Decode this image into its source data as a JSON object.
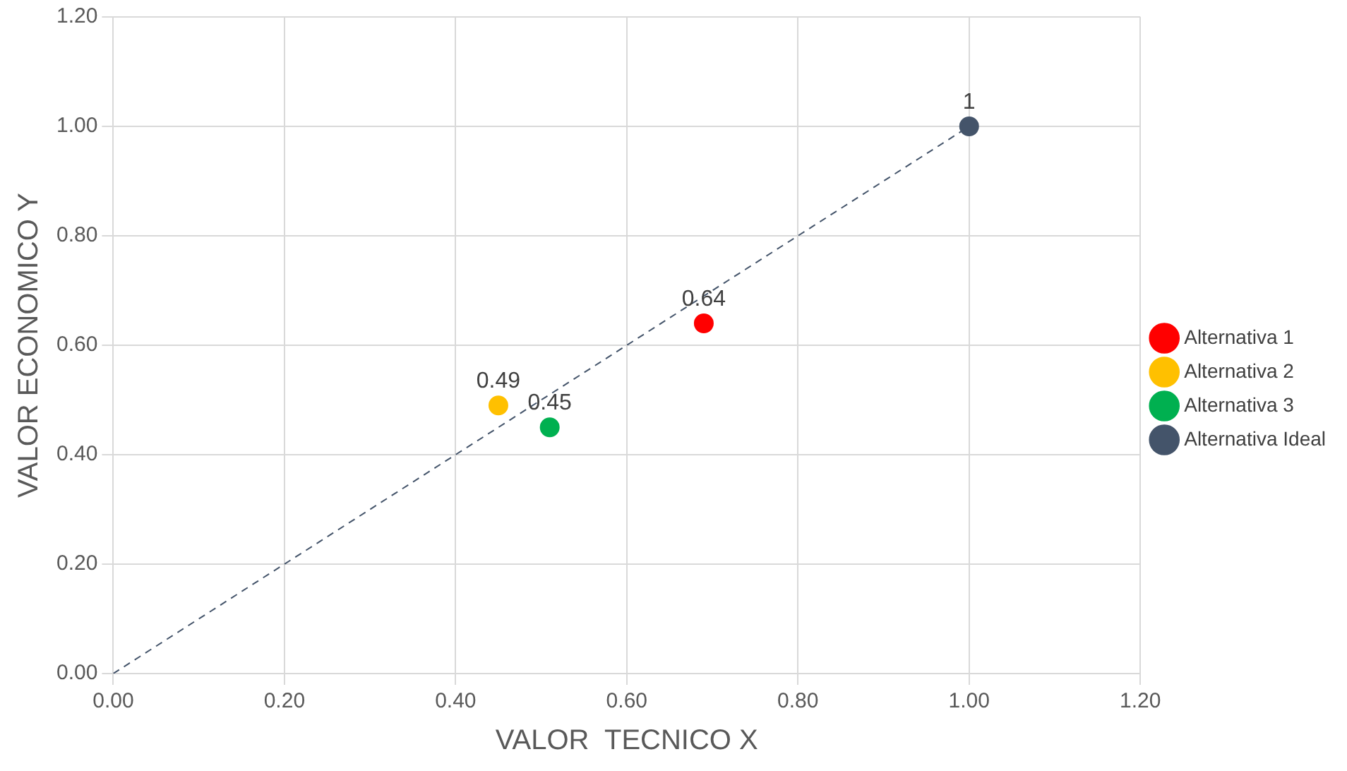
{
  "chart_data": {
    "type": "scatter",
    "xlabel": "VALOR  TECNICO X",
    "ylabel": "VALOR ECONOMICO Y",
    "xlim": [
      0,
      1.2
    ],
    "ylim": [
      0,
      1.2
    ],
    "xticks": [
      {
        "value": 0,
        "label": "0.00"
      },
      {
        "value": 0.2,
        "label": "0.20"
      },
      {
        "value": 0.4,
        "label": "0.40"
      },
      {
        "value": 0.6,
        "label": "0.60"
      },
      {
        "value": 0.8,
        "label": "0.80"
      },
      {
        "value": 1,
        "label": "1.00"
      },
      {
        "value": 1.2,
        "label": "1.20"
      }
    ],
    "yticks": [
      {
        "value": 0,
        "label": "0.00"
      },
      {
        "value": 0.2,
        "label": "0.20"
      },
      {
        "value": 0.4,
        "label": "0.40"
      },
      {
        "value": 0.6,
        "label": "0.60"
      },
      {
        "value": 0.8,
        "label": "0.80"
      },
      {
        "value": 1,
        "label": "1.00"
      },
      {
        "value": 1.2,
        "label": "1.20"
      }
    ],
    "grid": true,
    "legend": "right",
    "marker": "circle",
    "series": [
      {
        "name": "Alternativa 1",
        "color": "#ff0000",
        "x": [
          0.69
        ],
        "values": [
          0.64
        ],
        "value_labels": [
          "0.64"
        ]
      },
      {
        "name": "Alternativa 2",
        "color": "#ffc000",
        "x": [
          0.45
        ],
        "values": [
          0.49
        ],
        "value_labels": [
          "0.49"
        ]
      },
      {
        "name": "Alternativa 3",
        "color": "#00b050",
        "x": [
          0.51
        ],
        "values": [
          0.45
        ],
        "value_labels": [
          "0.45"
        ]
      },
      {
        "name": "Alternativa Ideal",
        "color": "#44546a",
        "x": [
          1
        ],
        "values": [
          1
        ],
        "value_labels": [
          "1"
        ]
      },
      {
        "type": "line",
        "color": "#44546a",
        "line_style": "dashed",
        "marker": "none",
        "x": [
          0,
          1
        ],
        "values": [
          0,
          1
        ]
      }
    ]
  }
}
